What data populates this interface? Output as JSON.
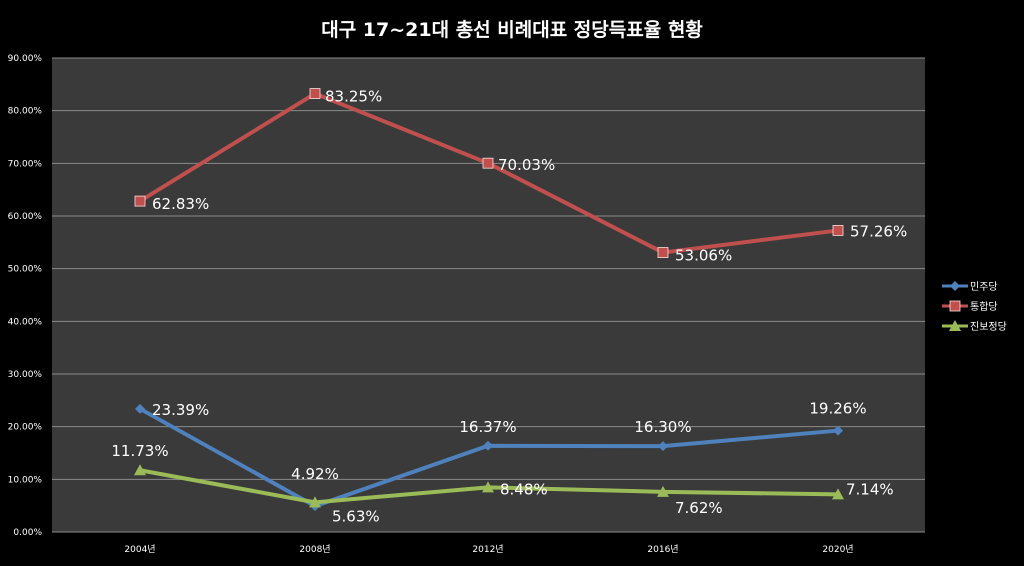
{
  "chart_data": {
    "type": "line",
    "title": "대구 17~21대 총선 비례대표 정당득표율 현황",
    "categories": [
      "2004년",
      "2008년",
      "2012년",
      "2016년",
      "2020년"
    ],
    "ylim": [
      0,
      90
    ],
    "yticks": [
      "0.00%",
      "10.00%",
      "20.00%",
      "30.00%",
      "40.00%",
      "50.00%",
      "60.00%",
      "70.00%",
      "80.00%",
      "90.00%"
    ],
    "grid": true,
    "legend_position": "right",
    "series": [
      {
        "name": "민주당",
        "color": "#4f81bd",
        "marker": "diamond",
        "values": [
          23.39,
          4.92,
          16.37,
          16.3,
          19.26
        ],
        "labels": [
          "23.39%",
          "4.92%",
          "16.37%",
          "16.30%",
          "19.26%"
        ]
      },
      {
        "name": "통합당",
        "color": "#c0504d",
        "marker": "square",
        "values": [
          62.83,
          83.25,
          70.03,
          53.06,
          57.26
        ],
        "labels": [
          "62.83%",
          "83.25%",
          "70.03%",
          "53.06%",
          "57.26%"
        ]
      },
      {
        "name": "진보정당",
        "color": "#9bbb59",
        "marker": "triangle",
        "values": [
          11.73,
          5.63,
          8.48,
          7.62,
          7.14
        ],
        "labels": [
          "11.73%",
          "5.63%",
          "8.48%",
          "7.62%",
          "7.14%"
        ]
      }
    ]
  }
}
